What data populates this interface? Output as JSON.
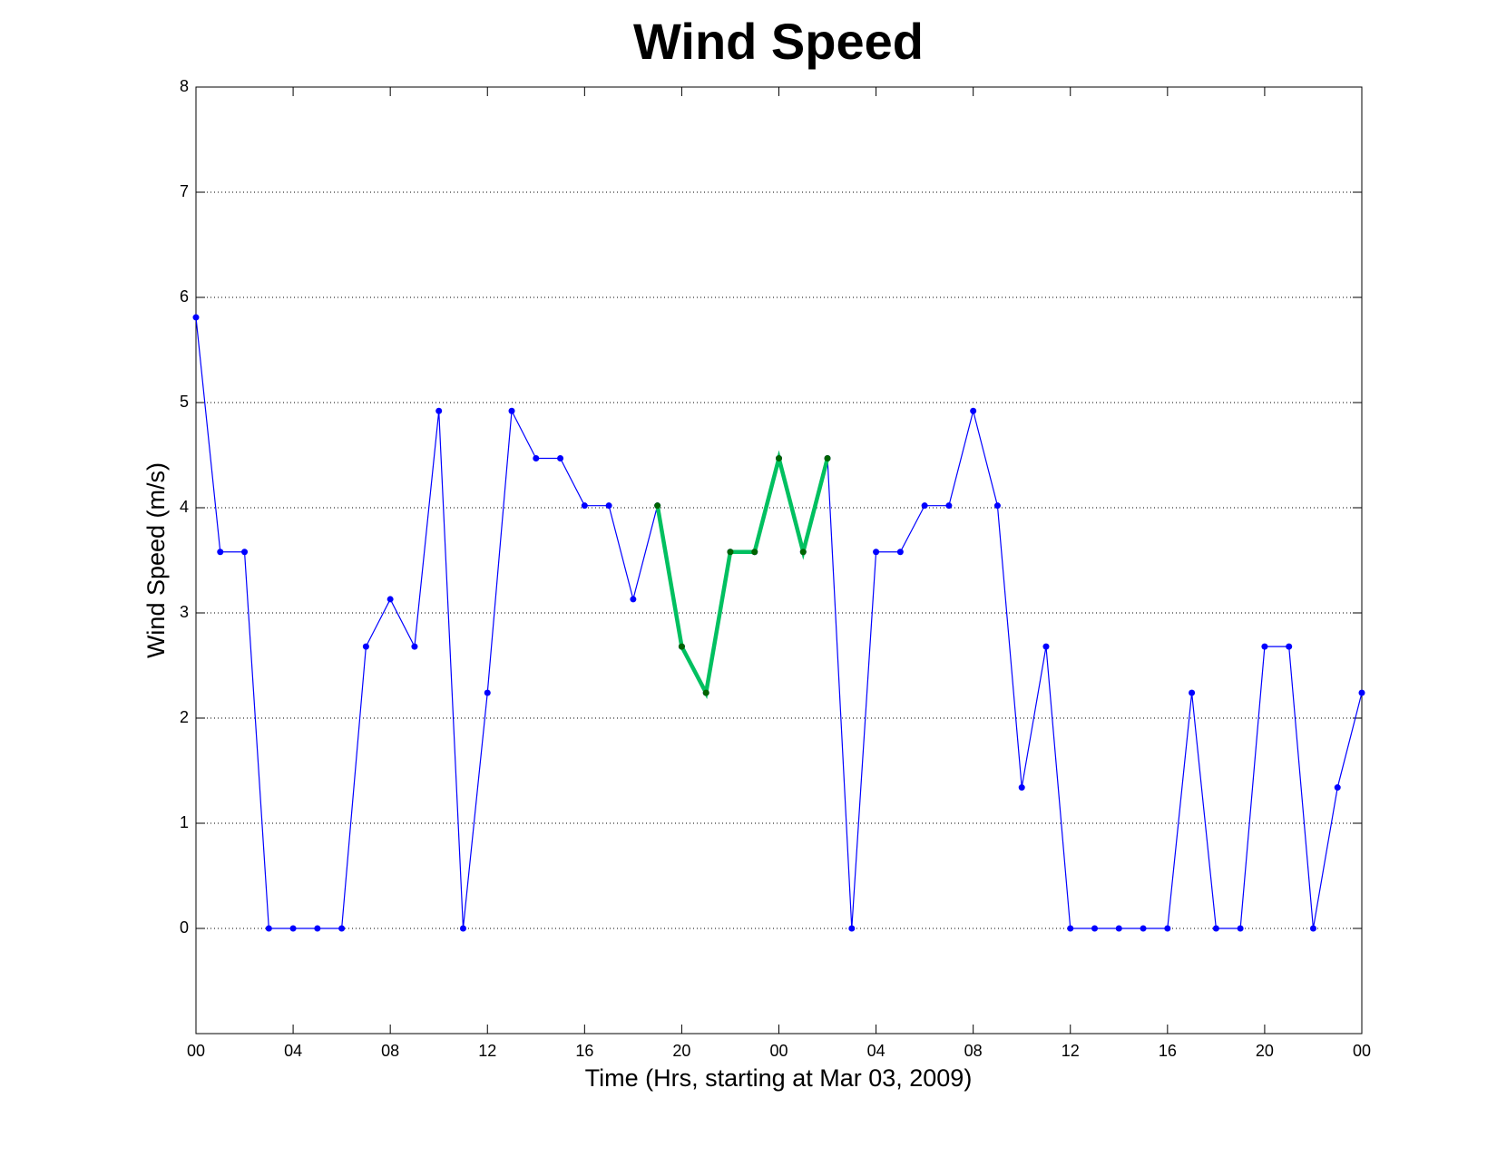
{
  "chart_data": {
    "type": "line",
    "title": "Wind Speed",
    "xlabel": "Time (Hrs, starting at Mar 03, 2009)",
    "ylabel": "Wind Speed (m/s)",
    "x": [
      0,
      1,
      2,
      3,
      4,
      5,
      6,
      7,
      8,
      9,
      10,
      11,
      12,
      13,
      14,
      15,
      16,
      17,
      18,
      19,
      20,
      21,
      22,
      23,
      24,
      25,
      26,
      27,
      28,
      29,
      30,
      31,
      32,
      33,
      34,
      35,
      36,
      37,
      38,
      39,
      40,
      41,
      42,
      43,
      44,
      45,
      46,
      47,
      48
    ],
    "series": [
      {
        "color": "#0000ff",
        "x": [
          0,
          1,
          2,
          3,
          4,
          5,
          6,
          7,
          8,
          9,
          10,
          11,
          12,
          13,
          14,
          15,
          16,
          17,
          18,
          19,
          20,
          21,
          22,
          23,
          24,
          25,
          26,
          27,
          28,
          29,
          30,
          31,
          32,
          33,
          34,
          35,
          36,
          37,
          38,
          39,
          40,
          41,
          42,
          43,
          44,
          45,
          46,
          47,
          48
        ],
        "values": [
          5.81,
          3.58,
          3.58,
          0,
          0,
          0,
          0,
          2.68,
          3.13,
          2.68,
          4.92,
          0,
          2.24,
          4.92,
          4.47,
          4.47,
          4.02,
          4.02,
          3.13,
          4.02,
          2.68,
          2.24,
          3.58,
          3.58,
          4.47,
          3.58,
          4.47,
          0,
          3.58,
          3.58,
          4.02,
          4.02,
          4.92,
          4.02,
          1.34,
          2.68,
          0,
          0,
          0,
          0,
          0,
          2.24,
          0,
          0,
          2.68,
          2.68,
          0,
          1.34,
          2.24
        ]
      },
      {
        "color": "#00c060",
        "marker_color": "#006400",
        "x": [
          19,
          20,
          21,
          22,
          23,
          24,
          25,
          26
        ],
        "values": [
          4.02,
          2.68,
          2.24,
          3.58,
          3.58,
          4.47,
          3.58,
          4.47
        ]
      }
    ],
    "xlim": [
      0,
      48
    ],
    "xticks": [
      {
        "value": 0,
        "label": "00"
      },
      {
        "value": 4,
        "label": "04"
      },
      {
        "value": 8,
        "label": "08"
      },
      12,
      16,
      20,
      {
        "value": 24,
        "label": "00"
      },
      {
        "value": 28,
        "label": "04"
      },
      {
        "value": 32,
        "label": "08"
      },
      {
        "value": 36,
        "label": "12"
      },
      {
        "value": 40,
        "label": "16"
      },
      {
        "value": 44,
        "label": "20"
      },
      {
        "value": 48,
        "label": "00"
      }
    ],
    "ylim": [
      -1,
      8
    ],
    "yticks": [
      0,
      1,
      2,
      3,
      4,
      5,
      6,
      7,
      8
    ],
    "grid": true
  }
}
